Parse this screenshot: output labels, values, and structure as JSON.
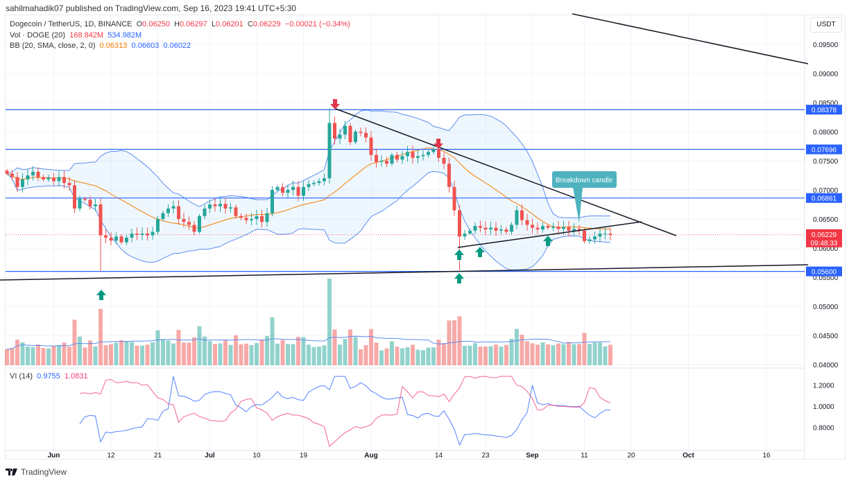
{
  "publisher": "sahilmahadik07 published on TradingView.com, Sep 16, 2023 19:41 UTC+5:30",
  "legend": {
    "symbol": "Dogecoin / TetherUS, 1D, BINANCE",
    "o_label": "O",
    "o": "0.06250",
    "h_label": "H",
    "h": "0.06297",
    "l_label": "L",
    "l": "0.06201",
    "c_label": "C",
    "c": "0.06229",
    "change": "−0.00021 (−0.34%)",
    "vol_label": "Vol · DOGE (20)",
    "vol1": "168.842M",
    "vol2": "534.982M",
    "bb_label": "BB (20, SMA, close, 2, 0)",
    "bb1": "0.06313",
    "bb2": "0.06603",
    "bb3": "0.06022",
    "vi_label": "VI (14)",
    "vi1": "0.9755",
    "vi2": "1.0831"
  },
  "currency": "USDT",
  "brand": "TradingView",
  "colors": {
    "up": "#26a69a",
    "down": "#ef5350",
    "level": "#2962ff",
    "bb": "#5b8def",
    "basis": "#f57c00",
    "last": "#f23645"
  },
  "chart_data": {
    "type": "candlestick",
    "start_date": "2023-05-23",
    "price_ticks": [
      "0.09500",
      "0.09000",
      "0.08500",
      "0.08000",
      "0.07500",
      "0.07000",
      "0.06500",
      "0.06000",
      "0.05500",
      "0.05000",
      "0.04500",
      "0.04000"
    ],
    "ylim": [
      0.039,
      0.0975
    ],
    "x_ticks": [
      {
        "label": "Jun",
        "day": 9,
        "bold": true
      },
      {
        "label": "12",
        "day": 20
      },
      {
        "label": "21",
        "day": 29
      },
      {
        "label": "Jul",
        "day": 39,
        "bold": true
      },
      {
        "label": "10",
        "day": 48
      },
      {
        "label": "19",
        "day": 57
      },
      {
        "label": "Aug",
        "day": 70,
        "bold": true
      },
      {
        "label": "14",
        "day": 83
      },
      {
        "label": "23",
        "day": 92
      },
      {
        "label": "Sep",
        "day": 101,
        "bold": true
      },
      {
        "label": "11",
        "day": 111
      },
      {
        "label": "20",
        "day": 120
      },
      {
        "label": "Oct",
        "day": 131,
        "bold": true
      },
      {
        "label": "16",
        "day": 146
      }
    ],
    "closes": [
      0.0728,
      0.0722,
      0.0705,
      0.0718,
      0.0725,
      0.0731,
      0.0722,
      0.0718,
      0.0721,
      0.0715,
      0.0722,
      0.0712,
      0.0708,
      0.0668,
      0.0685,
      0.0683,
      0.0672,
      0.0675,
      0.0622,
      0.0618,
      0.0613,
      0.062,
      0.061,
      0.0618,
      0.0625,
      0.0623,
      0.0625,
      0.0622,
      0.0628,
      0.065,
      0.066,
      0.0668,
      0.0672,
      0.065,
      0.0645,
      0.064,
      0.0628,
      0.0655,
      0.0668,
      0.0675,
      0.0672,
      0.0676,
      0.0668,
      0.067,
      0.0655,
      0.0652,
      0.0648,
      0.065,
      0.0655,
      0.0645,
      0.066,
      0.07,
      0.0705,
      0.0695,
      0.07,
      0.0705,
      0.069,
      0.0705,
      0.071,
      0.0712,
      0.0715,
      0.072,
      0.0815,
      0.0788,
      0.0795,
      0.081,
      0.0782,
      0.08,
      0.0798,
      0.079,
      0.076,
      0.0748,
      0.075,
      0.0745,
      0.076,
      0.0752,
      0.0758,
      0.0765,
      0.0755,
      0.0758,
      0.076,
      0.0765,
      0.077,
      0.0755,
      0.0745,
      0.0705,
      0.0665,
      0.062,
      0.0625,
      0.063,
      0.0638,
      0.0635,
      0.0632,
      0.0635,
      0.063,
      0.0632,
      0.0628,
      0.064,
      0.0665,
      0.0648,
      0.064,
      0.0635,
      0.0632,
      0.0638,
      0.0635,
      0.0637,
      0.0633,
      0.0636,
      0.063,
      0.0633,
      0.063,
      0.0612,
      0.0615,
      0.062,
      0.0625,
      0.0625,
      0.0623
    ],
    "levels": [
      {
        "value": 0.08378,
        "label": "0.08378"
      },
      {
        "value": 0.07696,
        "label": "0.07696"
      },
      {
        "value": 0.06861,
        "label": "0.06861"
      },
      {
        "value": 0.056,
        "label": "0.05600"
      }
    ],
    "last_price": {
      "label": "0.06229",
      "countdown": "09:48:33",
      "value": 0.06229
    },
    "annotation": "Breakdown candle",
    "vi_ticks": [
      "1.2000",
      "1.0000",
      "0.8000"
    ]
  }
}
